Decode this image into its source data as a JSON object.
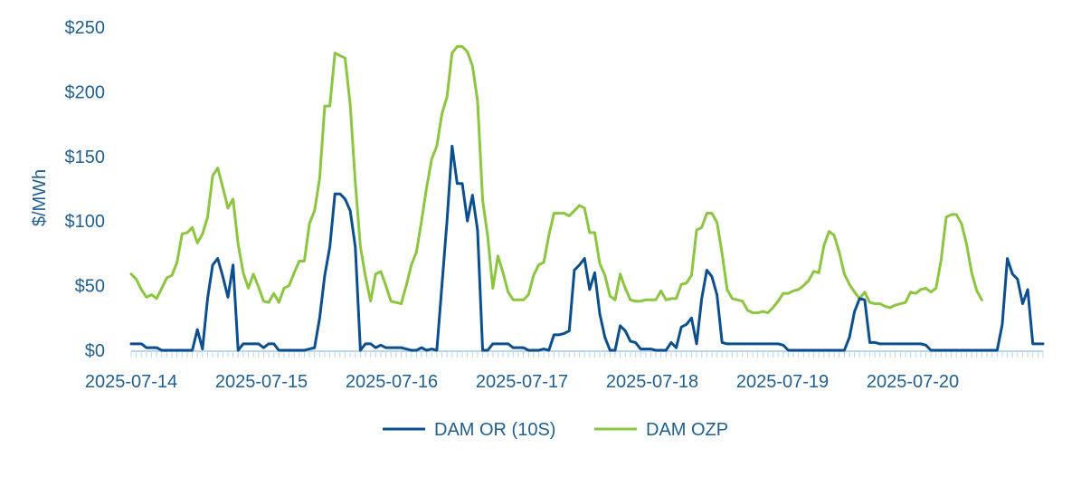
{
  "chart_data": {
    "type": "line",
    "title": "",
    "xlabel": "",
    "ylabel": "$/MWh",
    "ylim": [
      0,
      250
    ],
    "grid": false,
    "legend_position": "bottom-center",
    "x_start": "2025-07-14 00:00",
    "x_end": "2025-07-21 00:00",
    "x_ticks": [
      "2025-07-14",
      "2025-07-15",
      "2025-07-16",
      "2025-07-17",
      "2025-07-18",
      "2025-07-19",
      "2025-07-20"
    ],
    "y_ticks": [
      0,
      50,
      100,
      150,
      200,
      250
    ],
    "y_tick_labels": [
      "$0",
      "$50",
      "$100",
      "$150",
      "$200",
      "$250"
    ],
    "colors": {
      "axis_text": "#1f5f91",
      "axis_line": "#bcd7ec",
      "series_1": "#0b4f8f",
      "series_2": "#8cc641"
    },
    "series": [
      {
        "name": "DAM OR (10S)",
        "color": "#0b4f8f",
        "values": [
          5,
          5,
          5,
          2,
          2,
          2,
          0,
          0,
          0,
          0,
          0,
          0,
          0,
          16,
          1,
          40,
          66,
          71,
          57,
          41,
          66,
          0,
          5,
          5,
          5,
          5,
          2,
          5,
          5,
          0,
          0,
          0,
          0,
          0,
          0,
          1,
          2,
          25,
          58,
          80,
          121,
          121,
          117,
          108,
          80,
          0,
          5,
          5,
          2,
          4,
          2,
          2,
          2,
          2,
          1,
          0,
          0,
          2,
          0,
          1,
          0,
          50,
          100,
          158,
          129,
          129,
          100,
          120,
          93,
          0,
          0,
          5,
          5,
          5,
          5,
          2,
          2,
          2,
          0,
          0,
          0,
          1,
          0,
          12,
          12,
          13,
          15,
          62,
          66,
          71,
          47,
          60,
          28,
          10,
          0,
          0,
          19,
          15,
          7,
          6,
          1,
          1,
          1,
          0,
          0,
          0,
          6,
          2,
          18,
          20,
          25,
          5,
          40,
          62,
          57,
          43,
          6,
          5,
          5,
          5,
          5,
          5,
          5,
          5,
          5,
          5,
          5,
          5,
          4,
          0,
          0,
          0,
          0,
          0,
          0,
          0,
          0,
          0,
          0,
          0,
          0,
          10,
          30,
          40,
          39,
          6,
          6,
          5,
          5,
          5,
          5,
          5,
          5,
          5,
          5,
          5,
          4,
          0,
          0,
          0,
          0,
          0,
          0,
          0,
          0,
          0,
          0,
          0,
          0,
          0,
          0,
          20,
          71,
          59,
          55,
          36,
          47,
          5,
          5,
          5
        ]
      },
      {
        "name": "DAM OZP",
        "color": "#8cc641",
        "values": [
          59,
          55,
          47,
          41,
          43,
          40,
          48,
          56,
          58,
          68,
          90,
          91,
          95,
          83,
          90,
          103,
          135,
          141,
          126,
          110,
          117,
          82,
          60,
          48,
          59,
          49,
          38,
          37,
          44,
          37,
          48,
          50,
          60,
          69,
          69,
          98,
          108,
          133,
          189,
          189,
          230,
          228,
          226,
          190,
          130,
          80,
          57,
          38,
          59,
          61,
          50,
          38,
          37,
          36,
          50,
          66,
          76,
          100,
          126,
          148,
          158,
          183,
          196,
          230,
          235,
          235,
          231,
          220,
          193,
          116,
          88,
          48,
          73,
          60,
          45,
          39,
          39,
          39,
          43,
          58,
          66,
          68,
          89,
          106,
          106,
          106,
          104,
          108,
          112,
          110,
          91,
          91,
          67,
          58,
          42,
          39,
          59,
          48,
          39,
          38,
          38,
          39,
          39,
          39,
          46,
          39,
          40,
          40,
          51,
          52,
          58,
          93,
          95,
          106,
          106,
          99,
          75,
          47,
          40,
          39,
          38,
          31,
          29,
          29,
          30,
          29,
          33,
          38,
          44,
          44,
          46,
          47,
          50,
          54,
          61,
          60,
          81,
          92,
          89,
          76,
          59,
          51,
          45,
          40,
          45,
          37,
          36,
          36,
          34,
          33,
          35,
          36,
          37,
          45,
          44,
          47,
          48,
          45,
          48,
          70,
          103,
          105,
          105,
          98,
          82,
          60,
          46,
          39
        ]
      }
    ]
  }
}
